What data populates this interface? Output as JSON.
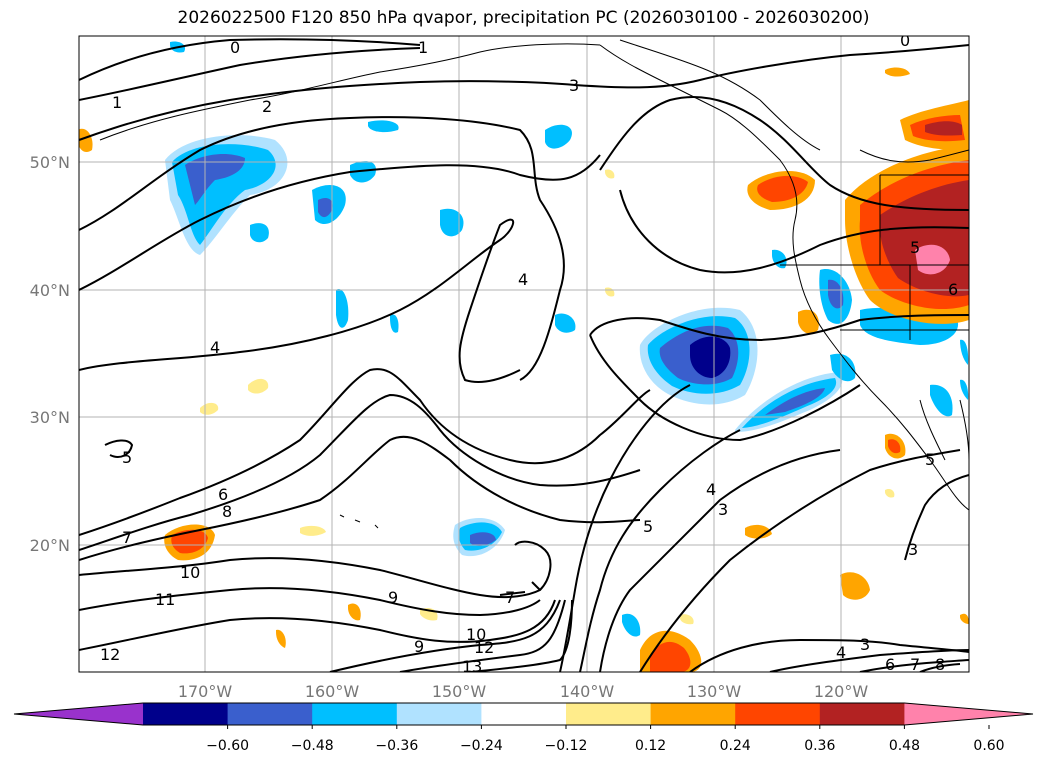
{
  "title": "2026022500 F120 850 hPa qvapor, precipitation PC (2026030100 - 2026030200)",
  "lat_labels": [
    "50°N",
    "40°N",
    "30°N",
    "20°N"
  ],
  "lon_labels": [
    "170°W",
    "160°W",
    "150°W",
    "140°W",
    "130°W",
    "120°W"
  ],
  "colorbar": {
    "colors": [
      "#9932cc",
      "#00008b",
      "#3a5fcd",
      "#00bfff",
      "#b0e2ff",
      "#ffffff",
      "#ffec8b",
      "#ffa500",
      "#ff4500",
      "#b22222",
      "#ff82ab"
    ],
    "tick_labels": [
      "−0.60",
      "−0.48",
      "−0.36",
      "−0.24",
      "−0.12",
      "0.12",
      "0.24",
      "0.36",
      "0.48",
      "0.60"
    ]
  },
  "contour_labels": [
    "0",
    "1",
    "2",
    "3",
    "4",
    "5",
    "6",
    "7",
    "8",
    "9",
    "10",
    "11",
    "12",
    "13"
  ]
}
